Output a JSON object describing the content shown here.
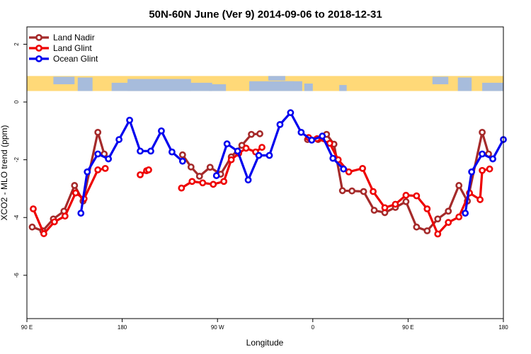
{
  "chart_data": {
    "type": "line",
    "title": "50N-60N June (Ver 9)   2014-09-06 to 2018-12-31",
    "xlabel": "Longitude",
    "ylabel": "XCO2 - MLO trend (ppm)",
    "xlim": [
      90,
      450
    ],
    "ylim": [
      -7.5,
      2.6
    ],
    "x_ticks": [
      {
        "value": 90,
        "label": "90 E"
      },
      {
        "value": 180,
        "label": "180"
      },
      {
        "value": 270,
        "label": "90 W"
      },
      {
        "value": 360,
        "label": "0"
      },
      {
        "value": 450,
        "label": "90 E"
      },
      {
        "value": 540,
        "label": "180"
      }
    ],
    "y_ticks": [
      {
        "value": 2,
        "label": "2"
      },
      {
        "value": 0,
        "label": "0"
      },
      {
        "value": -2,
        "label": "-2"
      },
      {
        "value": -4,
        "label": "-4"
      },
      {
        "value": -6,
        "label": "-6"
      }
    ],
    "x_range_display": [
      90,
      540
    ],
    "map_band": {
      "y_top": 0.9,
      "y_bottom": 0.38,
      "land_color": "#FFD978",
      "ocean_color": "#A7BCDC"
    },
    "legend_position": "top-left",
    "series": [
      {
        "name": "Land Nadir",
        "color": "#A52A2A",
        "points": [
          [
            95,
            -4.33
          ],
          [
            105,
            -4.46
          ],
          [
            115,
            -4.05
          ],
          [
            125,
            -3.78
          ],
          [
            135,
            -2.89
          ],
          [
            143,
            -3.43
          ],
          [
            157,
            -1.05
          ],
          [
            163,
            -1.8
          ],
          null,
          [
            237,
            -1.83
          ],
          [
            245,
            -2.25
          ],
          [
            253,
            -2.57
          ],
          [
            263,
            -2.26
          ],
          [
            273,
            -2.5
          ],
          [
            283,
            -1.9
          ],
          [
            293,
            -1.5
          ],
          [
            302,
            -1.12
          ],
          [
            310,
            -1.1
          ],
          null,
          [
            355,
            -1.3
          ],
          [
            365,
            -1.3
          ],
          [
            373,
            -1.12
          ],
          [
            380,
            -1.46
          ],
          [
            388,
            -3.07
          ],
          [
            397,
            -3.08
          ],
          [
            408,
            -3.1
          ],
          [
            418,
            -3.75
          ],
          [
            428,
            -3.83
          ],
          [
            438,
            -3.65
          ],
          [
            448,
            -3.45
          ],
          [
            458,
            -4.33
          ],
          [
            468,
            -4.46
          ],
          [
            478,
            -4.05
          ],
          [
            488,
            -3.78
          ],
          [
            498,
            -2.89
          ],
          [
            506,
            -3.43
          ],
          [
            520,
            -1.05
          ],
          [
            526,
            -1.8
          ]
        ]
      },
      {
        "name": "Land Glint",
        "color": "#EE0000",
        "points": [
          [
            96,
            -3.7
          ],
          [
            106,
            -4.56
          ],
          [
            116,
            -4.15
          ],
          [
            126,
            -3.95
          ],
          [
            136,
            -3.15
          ],
          [
            144,
            -3.35
          ],
          [
            157,
            -2.35
          ],
          [
            164,
            -2.3
          ],
          null,
          [
            197,
            -2.52
          ],
          [
            203,
            -2.38
          ],
          [
            205,
            -2.35
          ],
          null,
          [
            236,
            -2.98
          ],
          [
            246,
            -2.75
          ],
          [
            256,
            -2.8
          ],
          [
            266,
            -2.85
          ],
          [
            276,
            -2.75
          ],
          [
            283,
            -2.0
          ],
          [
            290,
            -1.78
          ],
          [
            297,
            -1.6
          ],
          [
            306,
            -1.73
          ],
          [
            312,
            -1.57
          ],
          null,
          [
            356,
            -1.23
          ],
          [
            364,
            -1.27
          ],
          [
            376,
            -1.43
          ],
          [
            384,
            -2.0
          ],
          [
            394,
            -2.42
          ],
          [
            407,
            -2.3
          ],
          [
            417,
            -3.1
          ],
          [
            428,
            -3.66
          ],
          [
            438,
            -3.54
          ],
          [
            448,
            -3.23
          ],
          [
            458,
            -3.25
          ],
          [
            468,
            -3.7
          ],
          [
            478,
            -4.57
          ],
          [
            488,
            -4.17
          ],
          [
            498,
            -3.98
          ],
          [
            508,
            -3.15
          ],
          [
            518,
            -3.38
          ],
          [
            520,
            -2.37
          ],
          [
            527,
            -2.32
          ]
        ]
      },
      {
        "name": "Ocean Glint",
        "color": "#0000EE",
        "points": [
          [
            141,
            -3.85
          ],
          [
            147,
            -2.42
          ],
          [
            157,
            -1.8
          ],
          [
            167,
            -1.97
          ],
          [
            177,
            -1.3
          ],
          [
            187,
            -0.63
          ],
          [
            197,
            -1.7
          ],
          [
            207,
            -1.7
          ],
          [
            217,
            -1.0
          ],
          [
            227,
            -1.73
          ],
          [
            237,
            -2.05
          ],
          null,
          [
            269,
            -2.55
          ],
          [
            279,
            -1.45
          ],
          [
            289,
            -1.7
          ],
          [
            299,
            -2.7
          ],
          [
            309,
            -1.85
          ],
          [
            319,
            -1.85
          ],
          [
            329,
            -0.78
          ],
          [
            339,
            -0.37
          ],
          [
            349,
            -1.05
          ],
          [
            359,
            -1.32
          ],
          [
            369,
            -1.18
          ],
          [
            379,
            -1.95
          ],
          [
            389,
            -2.32
          ],
          null,
          [
            504,
            -3.85
          ],
          [
            510,
            -2.42
          ],
          [
            520,
            -1.8
          ],
          [
            530,
            -1.97
          ],
          [
            540,
            -1.3
          ]
        ]
      }
    ]
  }
}
